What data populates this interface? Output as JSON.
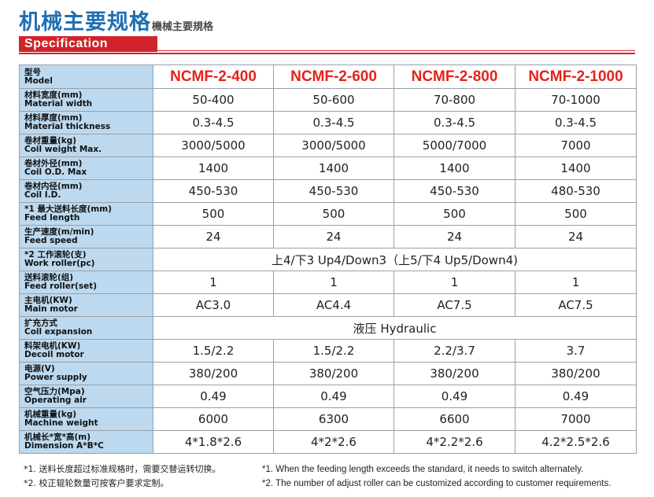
{
  "header": {
    "title_zh": "机械主要规格",
    "title_zh_small": "機械主要規格",
    "spec_label": "Specification"
  },
  "colors": {
    "title_blue": "#1f6fb2",
    "accent_red": "#d1232a",
    "label_bg": "#bcd9ef"
  },
  "table": {
    "header": {
      "zh": "型号",
      "en": "Model",
      "models": [
        "NCMF-2-400",
        "NCMF-2-600",
        "NCMF-2-800",
        "NCMF-2-1000"
      ]
    },
    "rows": [
      {
        "zh": "材料宽度(mm)",
        "en": "Material width",
        "values": [
          "50-400",
          "50-600",
          "70-800",
          "70-1000"
        ]
      },
      {
        "zh": "材料厚度(mm)",
        "en": "Material thickness",
        "values": [
          "0.3-4.5",
          "0.3-4.5",
          "0.3-4.5",
          "0.3-4.5"
        ]
      },
      {
        "zh": "卷材重量(kg)",
        "en": "Coil weight Max.",
        "values": [
          "3000/5000",
          "3000/5000",
          "5000/7000",
          "7000"
        ]
      },
      {
        "zh": "卷材外径(mm)",
        "en": "Coil O.D. Max",
        "values": [
          "1400",
          "1400",
          "1400",
          "1400"
        ]
      },
      {
        "zh": "卷材内径(mm)",
        "en": "Coil I.D.",
        "values": [
          "450-530",
          "450-530",
          "450-530",
          "480-530"
        ]
      },
      {
        "zh": "*1 最大送料长度(mm)",
        "en": "Feed length",
        "values": [
          "500",
          "500",
          "500",
          "500"
        ]
      },
      {
        "zh": "生产速度(m/min)",
        "en": "Feed speed",
        "values": [
          "24",
          "24",
          "24",
          "24"
        ]
      },
      {
        "zh": "*2 工作滚轮(支)",
        "en": "Work roller(pc)",
        "merged": "上4/下3 Up4/Down3（上5/下4 Up5/Down4)"
      },
      {
        "zh": "送料滚轮(组)",
        "en": "Feed roller(set)",
        "values": [
          "1",
          "1",
          "1",
          "1"
        ]
      },
      {
        "zh": "主电机(KW)",
        "en": "Main motor",
        "values": [
          "AC3.0",
          "AC4.4",
          "AC7.5",
          "AC7.5"
        ]
      },
      {
        "zh": "扩充方式",
        "en": "Coil expansion",
        "merged": "液压 Hydraulic"
      },
      {
        "zh": "料架电机(KW)",
        "en": "Decoil motor",
        "values": [
          "1.5/2.2",
          "1.5/2.2",
          "2.2/3.7",
          "3.7"
        ]
      },
      {
        "zh": "电源(V)",
        "en": "Power supply",
        "values": [
          "380/200",
          "380/200",
          "380/200",
          "380/200"
        ]
      },
      {
        "zh": "空气压力(Mpa)",
        "en": "Operating air",
        "values": [
          "0.49",
          "0.49",
          "0.49",
          "0.49"
        ]
      },
      {
        "zh": "机械重量(kg)",
        "en": "Machine weight",
        "values": [
          "6000",
          "6300",
          "6600",
          "7000"
        ]
      },
      {
        "zh": "机械长*宽*高(m)",
        "en": "Dimension A*B*C",
        "values": [
          "4*1.8*2.6",
          "4*2*2.6",
          "4*2.2*2.6",
          "4.2*2.5*2.6"
        ]
      }
    ]
  },
  "notes": {
    "zh": [
      "*1. 送料长度超过标准规格时，需要交替运转切换。",
      "*2. 校正辊轮数量可按客户要求定制。"
    ],
    "en": [
      "*1. When the feeding length exceeds the standard, it needs to switch alternately.",
      "*2. The number of adjust roller can be customized according to customer requirements."
    ]
  }
}
